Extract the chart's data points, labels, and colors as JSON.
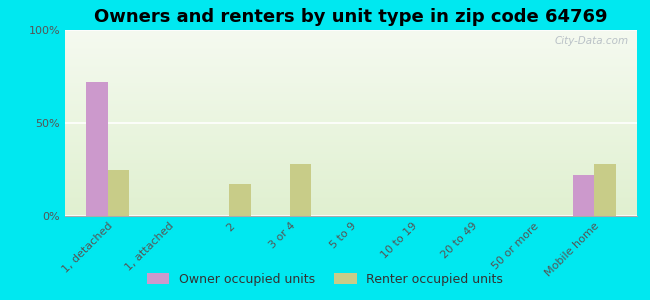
{
  "title": "Owners and renters by unit type in zip code 64769",
  "categories": [
    "1, detached",
    "1, attached",
    "2",
    "3 or 4",
    "5 to 9",
    "10 to 19",
    "20 to 49",
    "50 or more",
    "Mobile home"
  ],
  "owner_values": [
    72,
    0,
    0,
    0,
    0,
    0,
    0,
    0,
    22
  ],
  "renter_values": [
    25,
    0,
    17,
    28,
    0,
    0,
    0,
    0,
    28
  ],
  "owner_color": "#cc99cc",
  "renter_color": "#c8cc88",
  "background_color": "#00e8f0",
  "ylim": [
    0,
    100
  ],
  "yticks": [
    0,
    50,
    100
  ],
  "ytick_labels": [
    "0%",
    "50%",
    "100%"
  ],
  "bar_width": 0.35,
  "title_fontsize": 13,
  "tick_fontsize": 8,
  "legend_fontsize": 9,
  "watermark": "City-Data.com"
}
